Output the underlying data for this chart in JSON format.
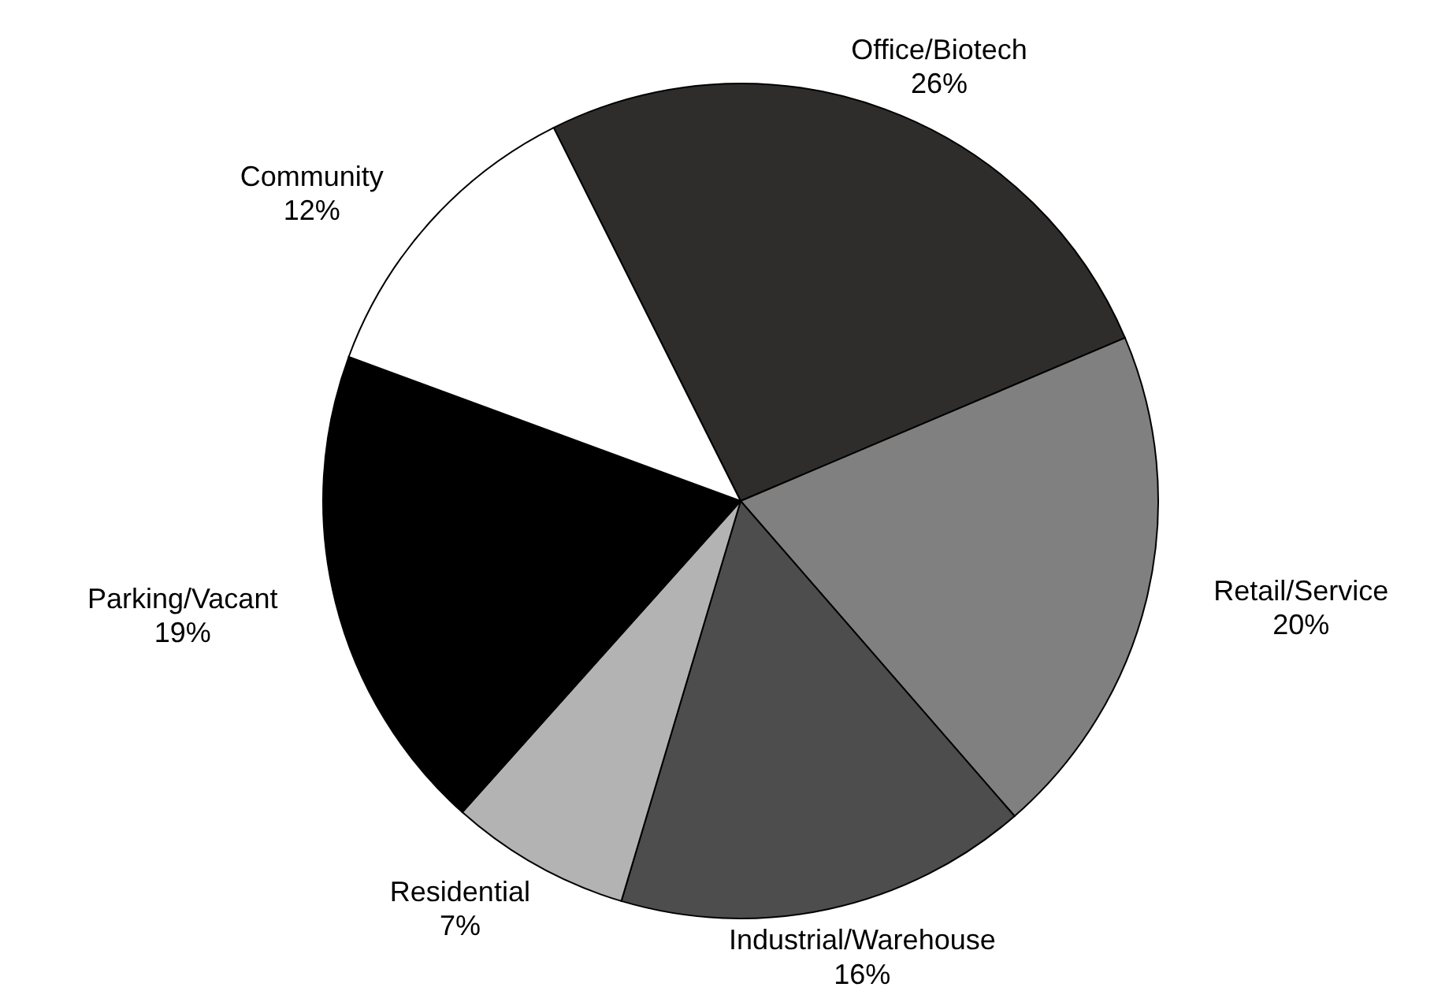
{
  "chart_data": {
    "type": "pie",
    "categories": [
      "Office/Biotech",
      "Retail/Service",
      "Industrial/Warehouse",
      "Residential",
      "Parking/Vacant",
      "Community"
    ],
    "values": [
      26,
      20,
      16,
      7,
      19,
      12
    ],
    "value_labels": [
      "26%",
      "20%",
      "16%",
      "7%",
      "19%",
      "12%"
    ],
    "colors": [
      "#2f2d2c",
      "#808080",
      "#4d4d4d",
      "#b3b3b3",
      "#000000",
      "#ffffff"
    ]
  }
}
